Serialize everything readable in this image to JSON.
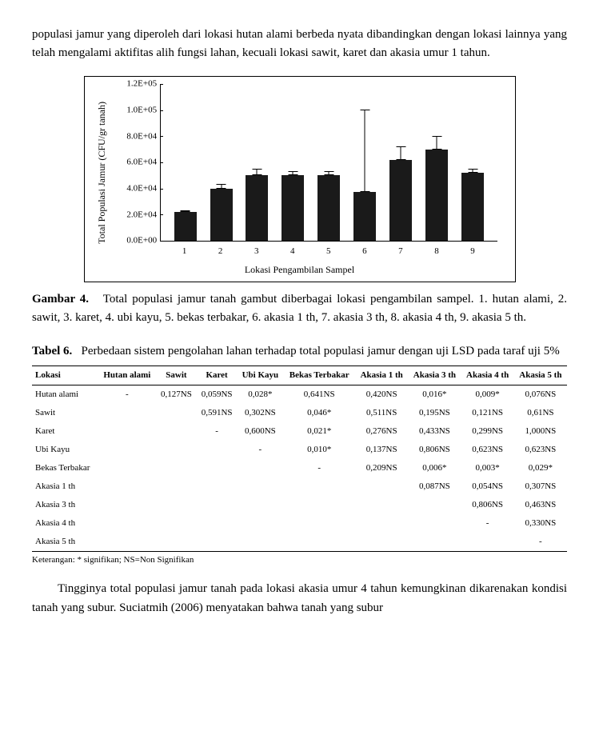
{
  "intro_paragraph": "populasi jamur yang diperoleh dari lokasi hutan alami berbeda nyata dibandingkan dengan lokasi lainnya yang telah mengalami aktifitas alih fungsi lahan, kecuali lokasi sawit, karet dan akasia umur 1 tahun.",
  "chart": {
    "type": "bar",
    "y_title": "Total Populasi Jamur\n(CFU/gr tanah)",
    "x_title": "Lokasi Pengambilan Sampel",
    "y_max": 120000,
    "y_ticks": [
      "0.0E+00",
      "2.0E+04",
      "4.0E+04",
      "6.0E+04",
      "8.0E+04",
      "1.0E+05",
      "1.2E+05"
    ],
    "categories": [
      "1",
      "2",
      "3",
      "4",
      "5",
      "6",
      "7",
      "8",
      "9"
    ],
    "values": [
      22000,
      40000,
      50000,
      50000,
      50000,
      37000,
      62000,
      70000,
      52000
    ],
    "err_up": [
      1000,
      3500,
      5000,
      3000,
      3000,
      63000,
      10000,
      10000,
      3000
    ],
    "bar_color": "#1a1a1a",
    "label_fontsize": 11,
    "title_fontsize": 12,
    "border_color": "#000000",
    "background_color": "#ffffff"
  },
  "figure_caption": {
    "lead": "Gambar 4.",
    "text": "Total populasi jamur tanah gambut diberbagai lokasi pengambilan  sampel. 1. hutan alami, 2. sawit, 3. karet, 4. ubi kayu, 5. bekas terbakar, 6. akasia 1 th, 7. akasia 3 th, 8. akasia 4 th, 9. akasia 5 th."
  },
  "table_caption": {
    "lead": "Tabel 6.",
    "text": "Perbedaan sistem pengolahan lahan terhadap total populasi jamur dengan uji LSD pada taraf uji 5%"
  },
  "table": {
    "columns": [
      "Lokasi",
      "Hutan alami",
      "Sawit",
      "Karet",
      "Ubi Kayu",
      "Bekas Terbakar",
      "Akasia 1 th",
      "Akasia 3 th",
      "Akasia 4 th",
      "Akasia 5 th"
    ],
    "rows": [
      [
        "Hutan alami",
        "-",
        "0,127NS",
        "0,059NS",
        "0,028*",
        "0,641NS",
        "0,420NS",
        "0,016*",
        "0,009*",
        "0,076NS"
      ],
      [
        "Sawit",
        "",
        "",
        "0,591NS",
        "0,302NS",
        "0,046*",
        "0,511NS",
        "0,195NS",
        "0,121NS",
        "0,61NS"
      ],
      [
        "Karet",
        "",
        "",
        "-",
        "0,600NS",
        "0,021*",
        "0,276NS",
        "0,433NS",
        "0,299NS",
        "1,000NS"
      ],
      [
        "Ubi Kayu",
        "",
        "",
        "",
        "-",
        "0,010*",
        "0,137NS",
        "0,806NS",
        "0,623NS",
        "0,623NS"
      ],
      [
        "Bekas Terbakar",
        "",
        "",
        "",
        "",
        "-",
        "0,209NS",
        "0,006*",
        "0,003*",
        "0,029*"
      ],
      [
        "Akasia 1 th",
        "",
        "",
        "",
        "",
        "",
        "",
        "0,087NS",
        "0,054NS",
        "0,307NS"
      ],
      [
        "Akasia 3 th",
        "",
        "",
        "",
        "",
        "",
        "",
        "",
        "0,806NS",
        "0,463NS"
      ],
      [
        "Akasia 4 th",
        "",
        "",
        "",
        "",
        "",
        "",
        "",
        "-",
        "0,330NS"
      ],
      [
        "Akasia 5 th",
        "",
        "",
        "",
        "",
        "",
        "",
        "",
        "",
        "-"
      ]
    ]
  },
  "table_note": "Keterangan: * signifikan; NS=Non Signifikan",
  "closing_paragraph": "Tingginya total populasi jamur tanah pada lokasi akasia umur 4 tahun kemungkinan dikarenakan kondisi tanah yang subur. Suciatmih (2006) menyatakan bahwa tanah yang subur"
}
